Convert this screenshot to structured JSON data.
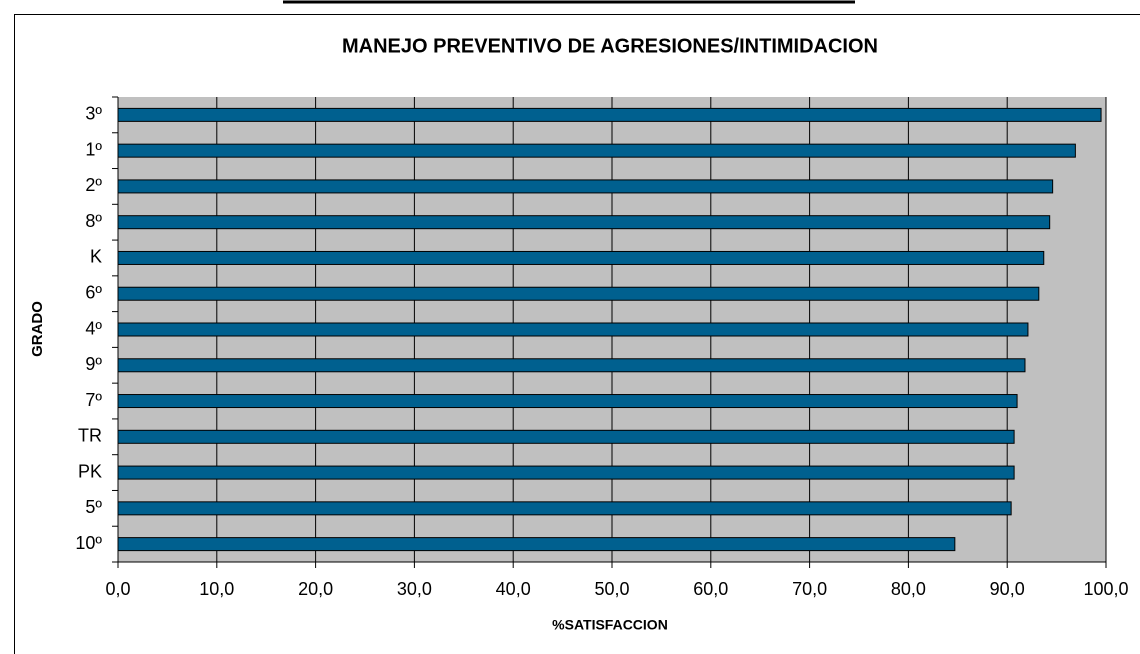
{
  "chart_data": {
    "type": "bar",
    "orientation": "horizontal",
    "title": "MANEJO PREVENTIVO DE AGRESIONES/INTIMIDACION",
    "x_label": "%SATISFACCION",
    "y_label": "GRADO",
    "categories": [
      "3º",
      "1º",
      "2º",
      "8º",
      "K",
      "6º",
      "4º",
      "9º",
      "7º",
      "TR",
      "PK",
      "5º",
      "10º"
    ],
    "values": [
      99.5,
      96.9,
      94.6,
      94.3,
      93.7,
      93.2,
      92.1,
      91.8,
      91.0,
      90.7,
      90.7,
      90.4,
      84.7
    ],
    "color": "#00608f",
    "xlim": [
      0,
      100
    ],
    "xticks": [
      {
        "value": 0,
        "label": "0,0"
      },
      {
        "value": 10,
        "label": "10,0"
      },
      {
        "value": 20,
        "label": "20,0"
      },
      {
        "value": 30,
        "label": "30,0"
      },
      {
        "value": 40,
        "label": "40,0"
      },
      {
        "value": 50,
        "label": "50,0"
      },
      {
        "value": 60,
        "label": "60,0"
      },
      {
        "value": 70,
        "label": "70,0"
      },
      {
        "value": 80,
        "label": "80,0"
      },
      {
        "value": 90,
        "label": "90,0"
      },
      {
        "value": 100,
        "label": "100,0"
      }
    ],
    "grid": true
  }
}
